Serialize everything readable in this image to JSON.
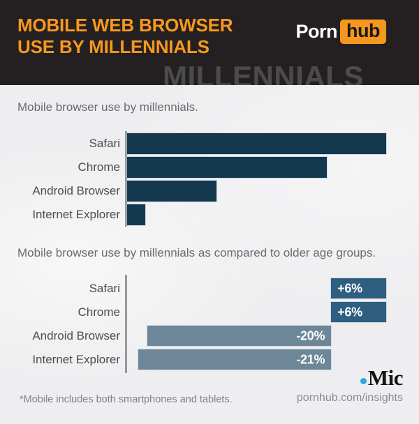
{
  "header": {
    "title_line1": "MOBILE WEB BROWSER",
    "title_line2": "USE BY MILLENNIALS",
    "title_color": "#f8981d",
    "bg_color": "#242021",
    "watermark": "MILLENNIALS",
    "watermark_color": "#4b4b4d",
    "logo": {
      "porn": "Porn",
      "hub": "hub",
      "box_color": "#f7971d"
    }
  },
  "chart_data": [
    {
      "type": "bar",
      "title": "Mobile browser use by millennials.",
      "categories": [
        "Safari",
        "Chrome",
        "Android Browser",
        "Internet Explorer"
      ],
      "values": [
        1.0,
        0.77,
        0.345,
        0.07
      ],
      "value_labels": null,
      "values_note": "no numeric labels shown; values are relative bar lengths (Safari = 1.0)",
      "xlim": [
        0,
        1.032
      ],
      "grid": false,
      "legend": false,
      "colors": {
        "positive": "#14394f",
        "negative": "#14394f"
      }
    },
    {
      "type": "diverging_bar",
      "title": "Mobile browser use by millennials as compared to older age groups.",
      "categories": [
        "Safari",
        "Chrome",
        "Android Browser",
        "Internet Explorer"
      ],
      "values": [
        6,
        6,
        -20,
        -21
      ],
      "value_labels": [
        "+6%",
        "+6%",
        "-20%",
        "-21%"
      ],
      "unit": "%",
      "xlim": [
        -22.2,
        6.9
      ],
      "grid": false,
      "legend": false,
      "colors": {
        "positive": "#2e5e80",
        "negative": "#6d8798"
      }
    }
  ],
  "footer": {
    "note": "*Mobile includes both smartphones and tablets.",
    "site": "pornhub.com/insights",
    "mic": {
      "text": "Mic",
      "dot_color": "#2aa9e0"
    }
  }
}
